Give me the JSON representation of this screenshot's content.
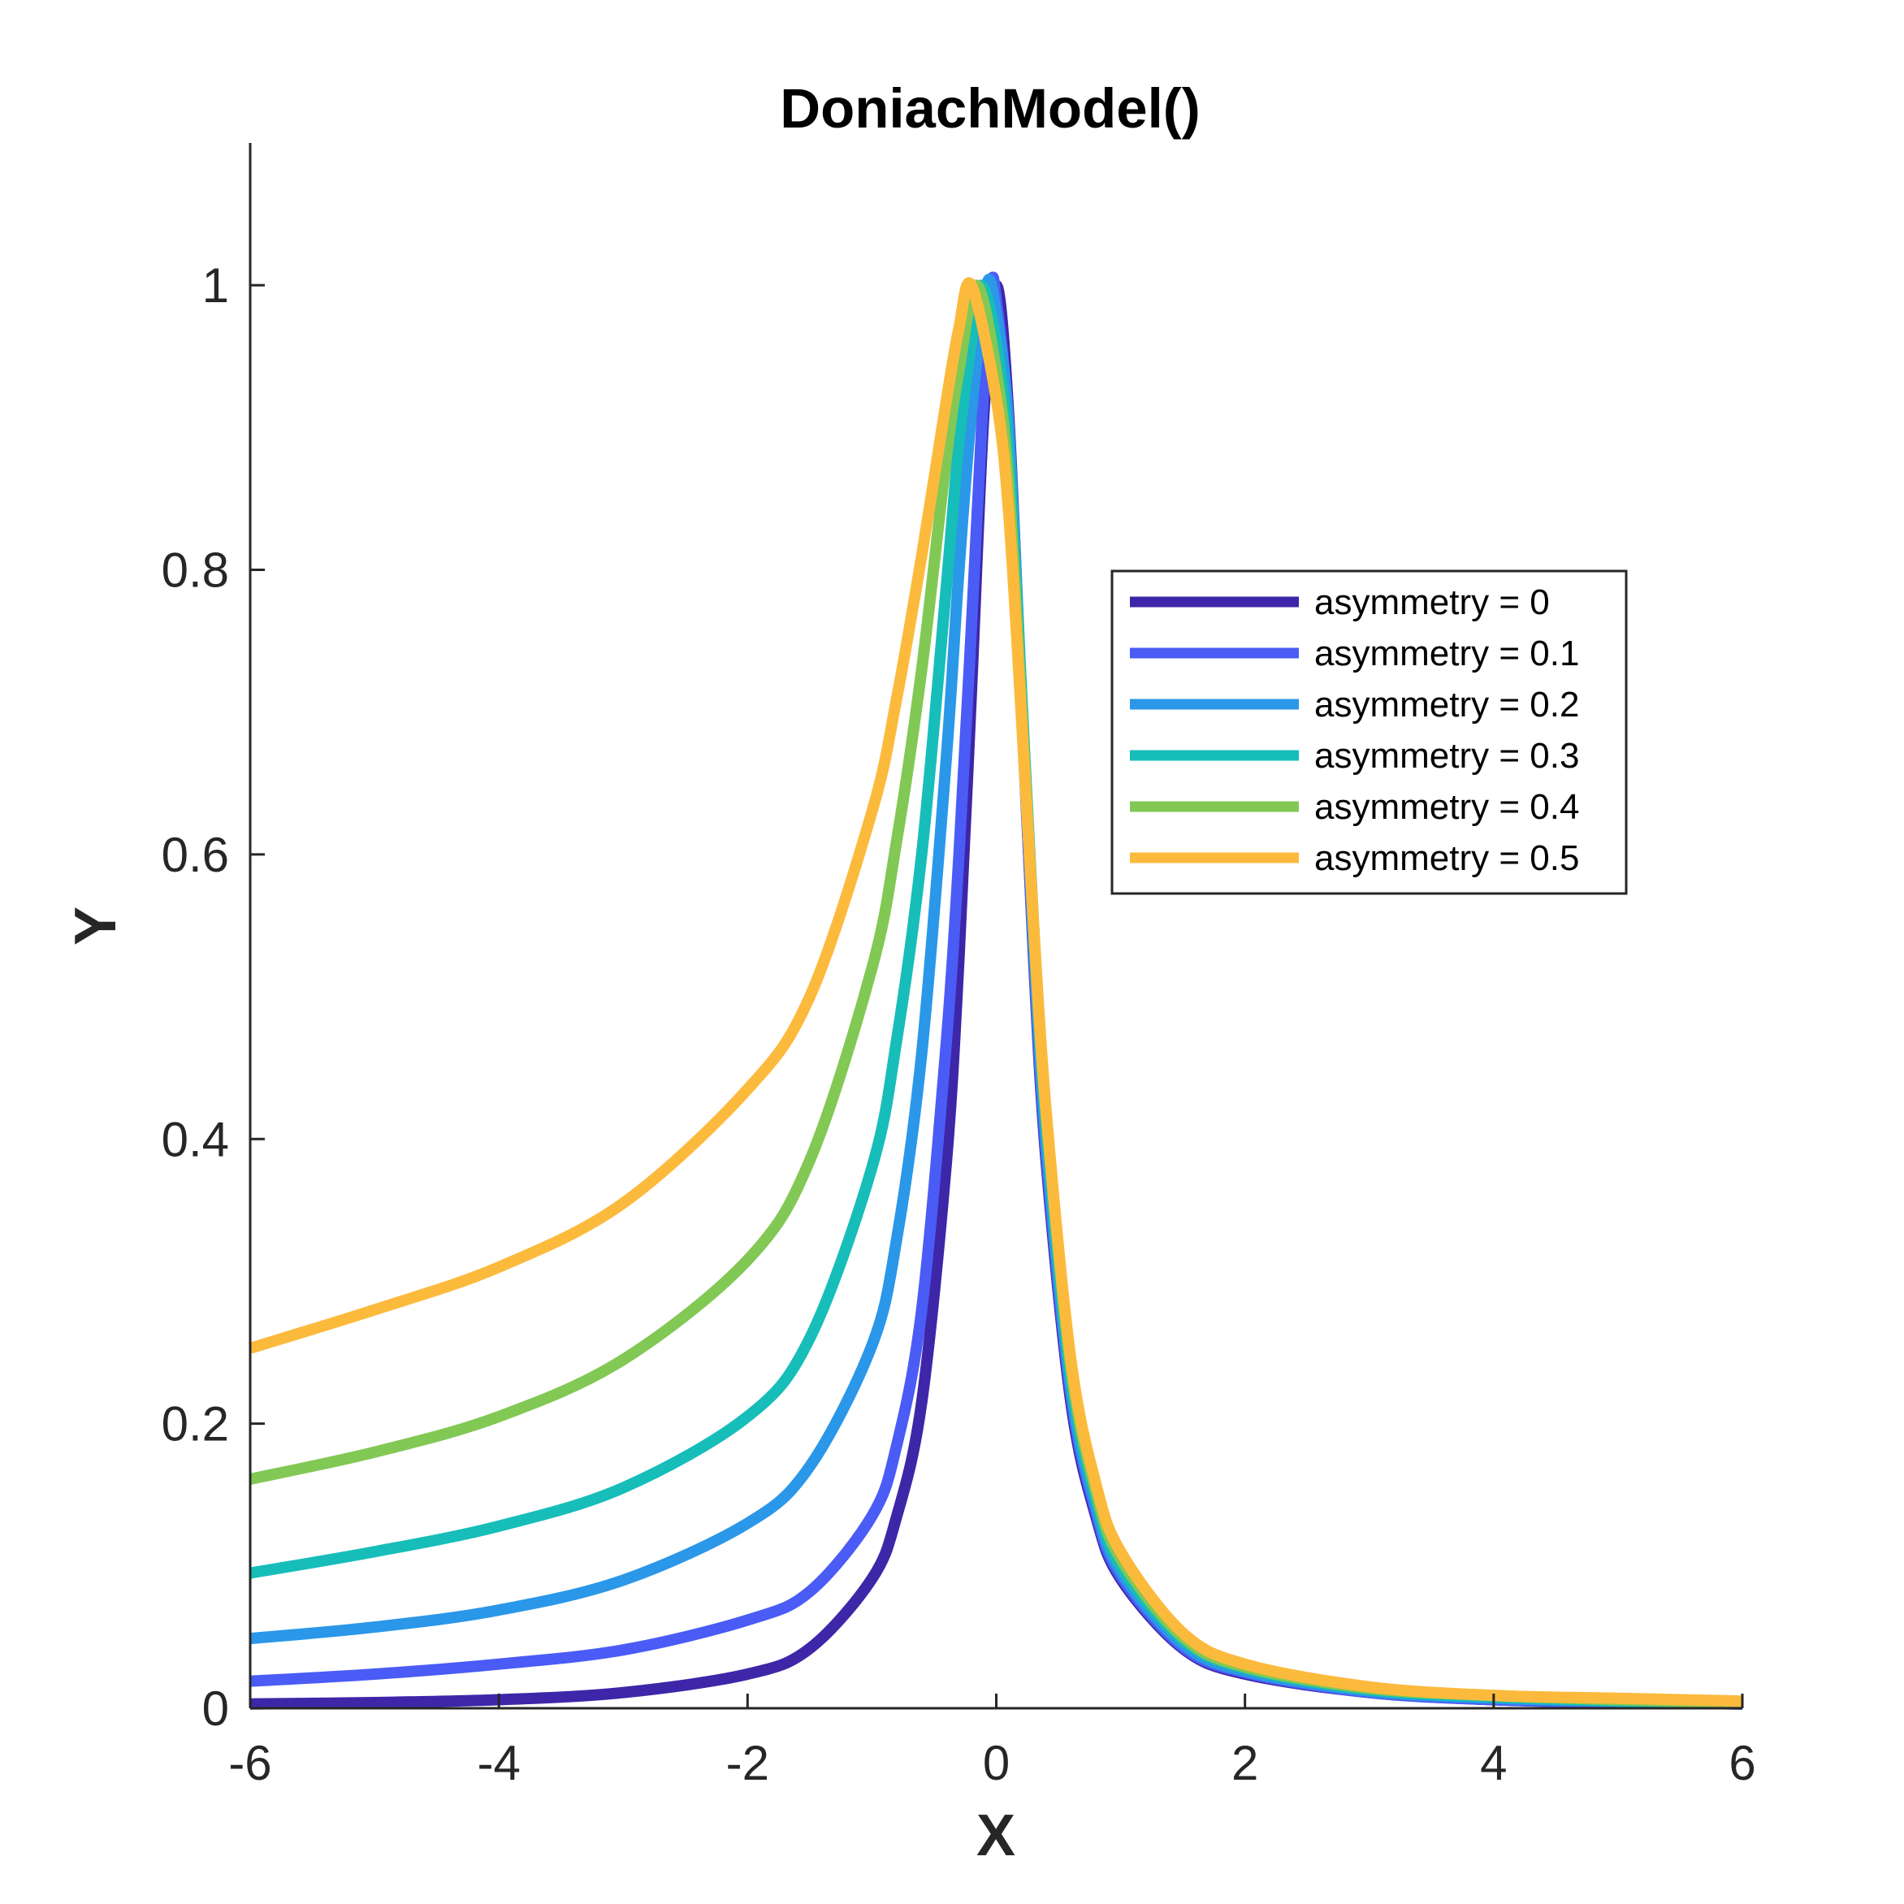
{
  "chart_data": {
    "type": "line",
    "title": "DoniachModel()",
    "xlabel": "X",
    "ylabel": "Y",
    "xlim": [
      -6,
      6
    ],
    "ylim": [
      0,
      1.1
    ],
    "xticks": [
      -6,
      -4,
      -2,
      0,
      2,
      4,
      6
    ],
    "yticks": [
      0,
      0.2,
      0.4,
      0.6,
      0.8,
      1
    ],
    "xtick_labels": [
      "-6",
      "-4",
      "-2",
      "0",
      "2",
      "4",
      "6"
    ],
    "ytick_labels": [
      "0",
      "0.2",
      "0.4",
      "0.6",
      "0.8",
      "1"
    ],
    "grid": false,
    "legend_position": "upper-right",
    "series": [
      {
        "name": "asymmetry = 0",
        "color": "#3e26a8",
        "x": [
          -6,
          -5,
          -4,
          -3,
          -2,
          -1.5,
          -1,
          -0.8,
          -0.6,
          -0.4,
          -0.3,
          -0.2,
          -0.1,
          0,
          0.1,
          0.2,
          0.3,
          0.4,
          0.6,
          0.8,
          1,
          1.5,
          2,
          3,
          4,
          5,
          6
        ],
        "y": [
          0.003,
          0.004,
          0.006,
          0.011,
          0.024,
          0.042,
          0.091,
          0.135,
          0.215,
          0.385,
          0.527,
          0.714,
          0.909,
          1.0,
          0.909,
          0.714,
          0.527,
          0.385,
          0.215,
          0.135,
          0.091,
          0.042,
          0.024,
          0.011,
          0.006,
          0.004,
          0.003
        ]
      },
      {
        "name": "asymmetry = 0.1",
        "color": "#4a5cf5",
        "x": [
          -6,
          -5,
          -4,
          -3,
          -2,
          -1.5,
          -1,
          -0.8,
          -0.6,
          -0.4,
          -0.3,
          -0.2,
          -0.1,
          -0.04,
          0,
          0.1,
          0.2,
          0.3,
          0.4,
          0.6,
          0.8,
          1,
          1.5,
          2,
          3,
          4,
          5,
          6
        ],
        "y": [
          0.019,
          0.024,
          0.031,
          0.041,
          0.062,
          0.082,
          0.135,
          0.185,
          0.28,
          0.47,
          0.6,
          0.76,
          0.93,
          1.0,
          0.99,
          0.9,
          0.71,
          0.53,
          0.39,
          0.22,
          0.138,
          0.093,
          0.043,
          0.025,
          0.011,
          0.006,
          0.004,
          0.003
        ]
      },
      {
        "name": "asymmetry = 0.2",
        "color": "#2b97e8",
        "x": [
          -6,
          -5,
          -4,
          -3,
          -2,
          -1.5,
          -1,
          -0.8,
          -0.6,
          -0.4,
          -0.3,
          -0.2,
          -0.08,
          0,
          0.1,
          0.2,
          0.3,
          0.4,
          0.6,
          0.8,
          1,
          1.5,
          2,
          3,
          4,
          5,
          6
        ],
        "y": [
          0.049,
          0.057,
          0.069,
          0.09,
          0.13,
          0.17,
          0.255,
          0.33,
          0.46,
          0.67,
          0.8,
          0.91,
          1.0,
          0.98,
          0.9,
          0.72,
          0.54,
          0.4,
          0.225,
          0.142,
          0.096,
          0.045,
          0.026,
          0.012,
          0.007,
          0.005,
          0.003
        ]
      },
      {
        "name": "asymmetry = 0.3",
        "color": "#17bdb9",
        "x": [
          -6,
          -5,
          -4,
          -3,
          -2,
          -1.5,
          -1,
          -0.8,
          -0.6,
          -0.4,
          -0.3,
          -0.2,
          -0.12,
          0,
          0.1,
          0.2,
          0.3,
          0.4,
          0.6,
          0.8,
          1,
          1.5,
          2,
          3,
          4,
          5,
          6
        ],
        "y": [
          0.095,
          0.11,
          0.128,
          0.155,
          0.205,
          0.26,
          0.38,
          0.47,
          0.6,
          0.79,
          0.89,
          0.96,
          1.0,
          0.96,
          0.88,
          0.72,
          0.55,
          0.41,
          0.232,
          0.148,
          0.1,
          0.048,
          0.028,
          0.013,
          0.008,
          0.005,
          0.004
        ]
      },
      {
        "name": "asymmetry = 0.4",
        "color": "#82c854",
        "x": [
          -6,
          -5,
          -4,
          -3,
          -2,
          -1.5,
          -1,
          -0.8,
          -0.6,
          -0.4,
          -0.3,
          -0.16,
          0,
          0.1,
          0.2,
          0.3,
          0.4,
          0.6,
          0.8,
          1,
          1.5,
          2,
          3,
          4,
          5,
          6
        ],
        "y": [
          0.161,
          0.18,
          0.205,
          0.245,
          0.315,
          0.385,
          0.52,
          0.61,
          0.73,
          0.88,
          0.94,
          1.0,
          0.94,
          0.86,
          0.71,
          0.55,
          0.42,
          0.24,
          0.153,
          0.105,
          0.05,
          0.029,
          0.014,
          0.009,
          0.006,
          0.004
        ]
      },
      {
        "name": "asymmetry = 0.5",
        "color": "#fcba3d",
        "x": [
          -6,
          -5,
          -4,
          -3,
          -2,
          -1.5,
          -1,
          -0.8,
          -0.6,
          -0.4,
          -0.3,
          -0.2,
          0,
          0.1,
          0.2,
          0.3,
          0.4,
          0.6,
          0.8,
          1,
          1.5,
          2,
          3,
          4,
          5,
          6
        ],
        "y": [
          0.253,
          0.28,
          0.31,
          0.355,
          0.435,
          0.5,
          0.63,
          0.71,
          0.81,
          0.92,
          0.97,
          1.0,
          0.92,
          0.84,
          0.7,
          0.55,
          0.42,
          0.245,
          0.158,
          0.11,
          0.053,
          0.031,
          0.015,
          0.009,
          0.007,
          0.005
        ]
      }
    ]
  }
}
